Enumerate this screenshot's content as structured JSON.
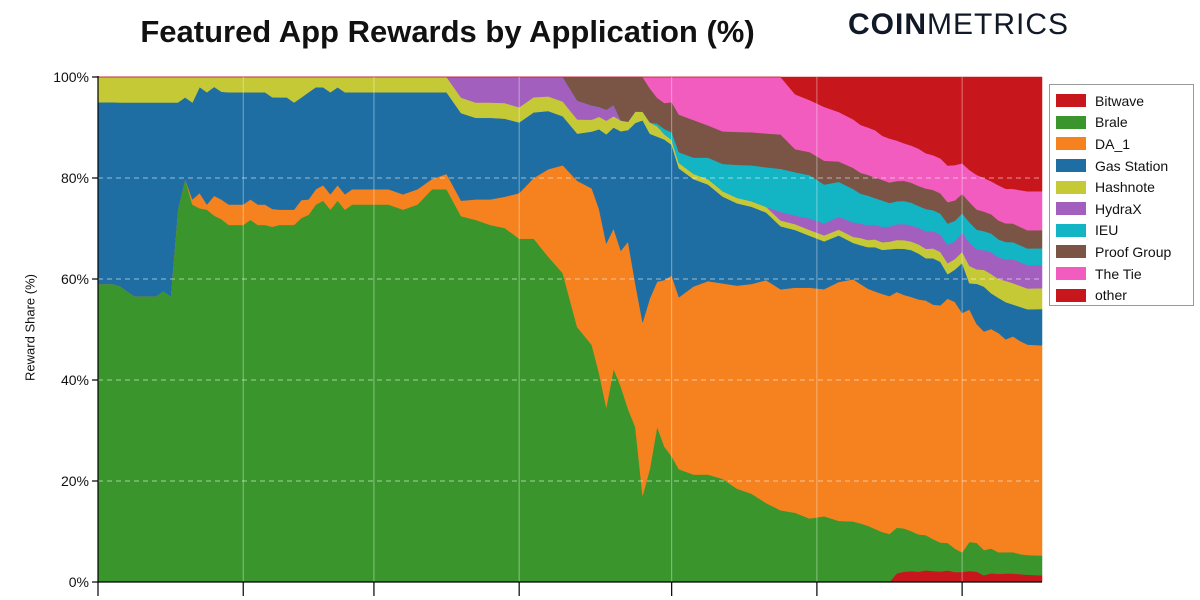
{
  "brand": {
    "part1": "COIN",
    "part2": "METRICS"
  },
  "chart_data": {
    "type": "area",
    "stacked": true,
    "normalized_percent": true,
    "title": "Featured App Rewards by Application (%)",
    "xlabel": "",
    "ylabel": "Reward Share (%)",
    "ylim": [
      0,
      100
    ],
    "xlim": [
      0,
      130
    ],
    "y_ticks": [
      0,
      20,
      40,
      60,
      80,
      100
    ],
    "y_tick_labels": [
      "0%",
      "20%",
      "40%",
      "60%",
      "80%",
      "100%"
    ],
    "x_ticks": [
      0,
      20,
      38,
      58,
      79,
      99,
      119
    ],
    "x_tick_labels": [
      "",
      "",
      "",
      "",
      "",
      "",
      ""
    ],
    "grid": {
      "horizontal": true,
      "vertical": true
    },
    "legend_position": "right",
    "stack_order_bottom_to_top": [
      "other",
      "Brale",
      "DA_1",
      "Gas Station",
      "Hashnote",
      "HydraX",
      "IEU",
      "Proof Group",
      "The Tie",
      "Bitwave"
    ],
    "x": [
      0,
      2,
      3,
      4,
      5,
      6,
      7,
      8,
      9,
      10,
      11,
      12,
      13,
      14,
      15,
      16,
      17,
      18,
      19,
      20,
      21,
      22,
      23,
      24,
      25,
      26,
      27,
      28,
      29,
      30,
      31,
      32,
      33,
      34,
      35,
      36,
      37,
      38,
      40,
      42,
      44,
      46,
      48,
      50,
      52,
      54,
      56,
      58,
      60,
      62,
      64,
      66,
      68,
      69,
      70,
      71,
      72,
      73,
      74,
      75,
      76,
      77,
      78,
      79,
      80,
      82,
      84,
      86,
      88,
      90,
      92,
      94,
      96,
      98,
      100,
      102,
      104,
      105,
      106,
      107,
      108,
      109,
      110,
      111,
      112,
      113,
      114,
      115,
      116,
      117,
      118,
      119,
      120,
      121,
      122,
      123,
      124,
      125,
      126,
      127,
      128,
      130
    ],
    "series": [
      {
        "name": "other",
        "color": "#c8161d",
        "values": [
          0,
          0,
          0,
          0,
          0,
          0,
          0,
          0,
          0,
          0,
          0,
          0,
          0,
          0,
          0,
          0,
          0,
          0,
          0,
          0,
          0,
          0,
          0,
          0,
          0,
          0,
          0,
          0,
          0,
          0,
          0,
          0,
          0,
          0,
          0,
          0,
          0,
          0,
          0,
          0,
          0,
          0,
          0,
          0,
          0,
          0,
          0,
          0,
          0,
          0,
          0,
          0,
          0,
          0,
          0,
          0,
          0,
          0,
          0,
          0,
          0,
          0,
          0,
          0,
          0,
          0,
          0,
          0,
          0,
          0,
          0,
          0,
          0,
          0,
          0,
          0,
          0,
          0,
          0,
          0,
          0,
          0,
          1.5,
          1.8,
          1.9,
          1.8,
          2.0,
          1.9,
          1.8,
          1.9,
          1.7,
          1.8,
          1.9,
          1.8,
          1.2,
          1.6,
          1.5,
          1.6,
          1.6,
          1.5,
          1.4,
          1.3
        ]
      },
      {
        "name": "Brale",
        "color": "#3a962c",
        "values": [
          59,
          59,
          58,
          57,
          56,
          56,
          56,
          56,
          57,
          56,
          73,
          79,
          74,
          74,
          73,
          74,
          74,
          70,
          70,
          70,
          71,
          70,
          70,
          70,
          70,
          70,
          70,
          71,
          72,
          74,
          74,
          73,
          74,
          73,
          74,
          74,
          74,
          74,
          74,
          73,
          74,
          77,
          77,
          71,
          71,
          70,
          68,
          68,
          68,
          67,
          63,
          54,
          50,
          42,
          32,
          38,
          36,
          31,
          27,
          15,
          20,
          30,
          26,
          25,
          21,
          20,
          20,
          19,
          17,
          16,
          14,
          12.5,
          12,
          11,
          11,
          10.5,
          10,
          9.8,
          9.5,
          9.0,
          8.5,
          8.2,
          7.9,
          7.5,
          7.0,
          6.5,
          6.0,
          5.5,
          5.0,
          4.5,
          4.0,
          3.5,
          5.0,
          5.0,
          4.5,
          4.5,
          4.0,
          4.0,
          4.0,
          3.8,
          3.8,
          3.8
        ]
      },
      {
        "name": "DA_1",
        "color": "#f5811f",
        "values": [
          0,
          0,
          0,
          0,
          0,
          0,
          0,
          0,
          0,
          0,
          0,
          0,
          1,
          3,
          1,
          4,
          4,
          4,
          4,
          4,
          4,
          4,
          4,
          3.5,
          3,
          3,
          3,
          3.5,
          3,
          3,
          3,
          3,
          3,
          3,
          3,
          3,
          3,
          3,
          3,
          3,
          3,
          2,
          3,
          3,
          4,
          5,
          6,
          9,
          12,
          18,
          22,
          31,
          33,
          33,
          30,
          25,
          25,
          30,
          25,
          30,
          30,
          28,
          32,
          36,
          32,
          35,
          36,
          36,
          37,
          38,
          39.5,
          38.5,
          39,
          40,
          38,
          41,
          40,
          40,
          40,
          40.2,
          40.5,
          40.6,
          40.8,
          40.5,
          41.0,
          41.0,
          40.0,
          40.5,
          40.8,
          40.0,
          42.0,
          43.0,
          40.0,
          38.0,
          39.0,
          40.0,
          40.5,
          40.0,
          40.5,
          40.5,
          40.5,
          40.5
        ]
      },
      {
        "name": "Gas Station",
        "color": "#1f6ea3",
        "values": [
          36,
          36,
          36,
          37,
          38,
          38,
          38,
          38,
          37,
          38,
          21,
          16,
          19,
          21,
          22,
          22,
          22,
          22,
          22,
          22,
          21,
          22,
          22,
          22,
          22,
          22,
          21,
          20,
          21,
          20,
          19,
          20,
          19,
          20,
          19,
          19,
          19,
          19,
          19,
          20,
          19,
          17,
          16,
          17,
          16,
          16,
          15,
          14,
          13,
          12,
          10,
          10,
          12,
          16,
          20,
          18,
          22,
          20,
          28,
          35,
          29,
          28,
          27,
          26,
          24,
          20,
          18,
          16,
          15,
          14,
          12,
          11,
          10,
          9,
          8,
          8,
          6,
          6.5,
          7.0,
          7.5,
          7.5,
          8.0,
          7.5,
          8.0,
          8.2,
          8.0,
          7.2,
          8.0,
          7.5,
          4.0,
          5.5,
          9.0,
          4.5,
          7.0,
          8.0,
          6.5,
          6.5,
          7.0,
          6.0,
          6.5,
          6.8,
          7.0
        ]
      },
      {
        "name": "Hashnote",
        "color": "#c5c936",
        "values": [
          5,
          5,
          5,
          5,
          5,
          5,
          5,
          5,
          5,
          5,
          5,
          4,
          5,
          2,
          3,
          2,
          3,
          3,
          3,
          3,
          3,
          3,
          3,
          4,
          4,
          4,
          5,
          4,
          3,
          2,
          2,
          3,
          2,
          3,
          3,
          3,
          3,
          3,
          3,
          3,
          3,
          3,
          3,
          3,
          3,
          3,
          3,
          3,
          3,
          3,
          3,
          3,
          2.5,
          2.5,
          2.5,
          2.0,
          2.0,
          1.5,
          2.0,
          1.5,
          2.0,
          2.0,
          1.0,
          1.0,
          1.0,
          1.0,
          1.0,
          1.0,
          1.0,
          1.0,
          1.0,
          1.0,
          1.0,
          1.0,
          1.0,
          1.0,
          1.0,
          1.2,
          1.2,
          1.3,
          1.3,
          1.3,
          1.5,
          1.5,
          1.5,
          1.6,
          1.6,
          1.7,
          1.7,
          1.8,
          1.8,
          2.0,
          3.0,
          2.5,
          3.0,
          3.5,
          3.5,
          4.0,
          4.0,
          4.0,
          4.0,
          4.0
        ]
      },
      {
        "name": "HydraX",
        "color": "#a35fbe",
        "values": [
          0,
          0,
          0,
          0,
          0,
          0,
          0,
          0,
          0,
          0,
          0,
          0,
          0,
          0,
          0,
          0,
          0,
          0,
          0,
          0,
          0,
          0,
          0,
          0,
          0,
          0,
          0,
          0,
          0,
          0,
          0,
          0,
          0,
          0,
          0,
          0,
          0,
          0,
          0,
          0,
          0,
          0,
          0,
          4,
          5,
          5,
          5,
          6,
          4,
          4,
          5,
          4,
          3,
          2,
          2,
          2,
          0,
          0,
          0,
          0,
          0,
          0,
          0,
          0,
          0,
          0,
          0,
          0,
          0,
          0,
          0,
          1.5,
          1.5,
          2.0,
          2.0,
          2.2,
          2.4,
          2.4,
          2.5,
          2.5,
          2.6,
          2.6,
          2.7,
          2.8,
          2.8,
          2.9,
          3.0,
          3.0,
          3.0,
          3.0,
          3.0,
          3.5,
          4.0,
          3.5,
          3.5,
          4.0,
          4.0,
          4.0,
          4.5,
          4.5,
          4.5,
          4.5
        ]
      },
      {
        "name": "IEU",
        "color": "#13b4c4",
        "values": [
          0,
          0,
          0,
          0,
          0,
          0,
          0,
          0,
          0,
          0,
          0,
          0,
          0,
          0,
          0,
          0,
          0,
          0,
          0,
          0,
          0,
          0,
          0,
          0,
          0,
          0,
          0,
          0,
          0,
          0,
          0,
          0,
          0,
          0,
          0,
          0,
          0,
          0,
          0,
          0,
          0,
          0,
          0,
          0,
          0,
          0,
          0,
          0,
          0,
          0,
          0,
          0,
          0,
          0,
          0,
          0,
          0,
          0,
          0,
          0,
          0,
          0.5,
          1.0,
          1.5,
          2.0,
          3.0,
          4.0,
          5.0,
          6.0,
          6.5,
          7.0,
          7.5,
          7.5,
          7.5,
          6.5,
          6.0,
          5.5,
          5.0,
          5.0,
          4.5,
          4.5,
          4.0,
          4.0,
          4.0,
          4.0,
          3.8,
          3.8,
          3.6,
          3.6,
          3.5,
          3.5,
          3.4,
          3.5,
          3.4,
          3.4,
          3.4,
          3.3,
          3.3,
          3.2,
          3.2,
          3.2,
          3.2
        ]
      },
      {
        "name": "Proof Group",
        "color": "#7a5545",
        "values": [
          0,
          0,
          0,
          0,
          0,
          0,
          0,
          0,
          0,
          0,
          0,
          0,
          0,
          0,
          0,
          0,
          0,
          0,
          0,
          0,
          0,
          0,
          0,
          0,
          0,
          0,
          0,
          0,
          0,
          0,
          0,
          0,
          0,
          0,
          0,
          0,
          0,
          0,
          0,
          0,
          0,
          0,
          0,
          0,
          0,
          0,
          0,
          0,
          0,
          0,
          0,
          5,
          6,
          6,
          6,
          5,
          8,
          8,
          6,
          6,
          6,
          5,
          5,
          6,
          7,
          7,
          6,
          6,
          6,
          6,
          6,
          6,
          4,
          4,
          4,
          3.5,
          3.5,
          3.5,
          3.5,
          3.5,
          3.5,
          3.5,
          3.5,
          3.5,
          3.5,
          3.5,
          3.5,
          3.5,
          3.5,
          3.5,
          3.5,
          3.5,
          3.5,
          3.5,
          3.5,
          3.5,
          3.5,
          3.5,
          3.5,
          3.5,
          3.5,
          3.5
        ]
      },
      {
        "name": "The Tie",
        "color": "#f25cbe",
        "values": [
          0,
          0,
          0,
          0,
          0,
          0,
          0,
          0,
          0,
          0,
          0,
          0,
          0,
          0,
          0,
          0,
          0,
          0,
          0,
          0,
          0,
          0,
          0,
          0,
          0,
          0,
          0,
          0,
          0,
          0,
          0,
          0,
          0,
          0,
          0,
          0,
          0,
          0,
          0,
          0,
          0,
          0,
          0,
          0,
          0,
          0,
          0,
          0,
          0,
          0,
          0,
          0,
          0,
          0,
          0,
          0,
          0,
          0,
          0,
          0,
          2,
          4,
          5,
          5,
          7,
          8,
          9,
          10,
          10,
          10,
          10,
          10,
          9.5,
          9,
          9,
          8.5,
          8,
          8,
          8,
          8,
          7.5,
          7.5,
          7,
          6.5,
          6.5,
          6.5,
          6,
          6,
          6,
          6,
          6,
          5.5,
          5.5,
          6,
          6,
          6,
          6.5,
          6.5,
          6.5,
          7,
          7.5,
          7.5
        ]
      },
      {
        "name": "Bitwave",
        "color": "#c8161d",
        "values": [
          0,
          0,
          0,
          0,
          0,
          0,
          0,
          0,
          0,
          0,
          0,
          0,
          0,
          0,
          0,
          0,
          0,
          0,
          0,
          0,
          0,
          0,
          0,
          0,
          0,
          0,
          0,
          0,
          0,
          0,
          0,
          0,
          0,
          0,
          0,
          0,
          0,
          0,
          0,
          0,
          0,
          0,
          0,
          0,
          0,
          0,
          0,
          0,
          0,
          0,
          0,
          0,
          0,
          0,
          0,
          0,
          0,
          0,
          0,
          0,
          0,
          0,
          0,
          0,
          0,
          0,
          0,
          0,
          0,
          0,
          0,
          0,
          3,
          4,
          5,
          6,
          7,
          8,
          8.5,
          9,
          10,
          10.5,
          11,
          11.5,
          12,
          12.5,
          13,
          13.5,
          14,
          14.5,
          15,
          15.5,
          16,
          17,
          18,
          19,
          20,
          21,
          21,
          21.5,
          22,
          22
        ]
      }
    ],
    "legend_order": [
      "Bitwave",
      "Brale",
      "DA_1",
      "Gas Station",
      "Hashnote",
      "HydraX",
      "IEU",
      "Proof Group",
      "The Tie",
      "other"
    ]
  }
}
